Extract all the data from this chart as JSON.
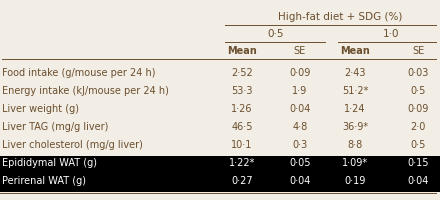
{
  "title": "High-fat diet + SDG (%)",
  "col_groups": [
    "0·5",
    "1·0"
  ],
  "col_headers": [
    "Mean",
    "SE",
    "Mean",
    "SE"
  ],
  "rows": [
    {
      "label": "Food intake (g/mouse per 24 h)",
      "values": [
        "2·52",
        "0·09",
        "2·43",
        "0·03"
      ],
      "highlight": false
    },
    {
      "label": "Energy intake (kJ/mouse per 24 h)",
      "values": [
        "53·3",
        "1·9",
        "51·2*",
        "0·5"
      ],
      "highlight": false
    },
    {
      "label": "Liver weight (g)",
      "values": [
        "1·26",
        "0·04",
        "1·24",
        "0·09"
      ],
      "highlight": false
    },
    {
      "label": "Liver TAG (mg/g liver)",
      "values": [
        "46·5",
        "4·8",
        "36·9*",
        "2·0"
      ],
      "highlight": false
    },
    {
      "label": "Liver cholesterol (mg/g liver)",
      "values": [
        "10·1",
        "0·3",
        "8·8",
        "0·5"
      ],
      "highlight": false
    },
    {
      "label": "Epididymal WAT (g)",
      "values": [
        "1·22*",
        "0·05",
        "1·09*",
        "0·15"
      ],
      "highlight": true
    },
    {
      "label": "Perirenal WAT (g)",
      "values": [
        "0·27",
        "0·04",
        "0·19",
        "0·04"
      ],
      "highlight": true
    }
  ],
  "highlight_bg": "#000000",
  "highlight_fg": "#ffffff",
  "normal_fg": "#6b4f2e",
  "header_fg": "#6b4f2e",
  "line_color": "#6b4f2e",
  "background": "#f2ede5"
}
